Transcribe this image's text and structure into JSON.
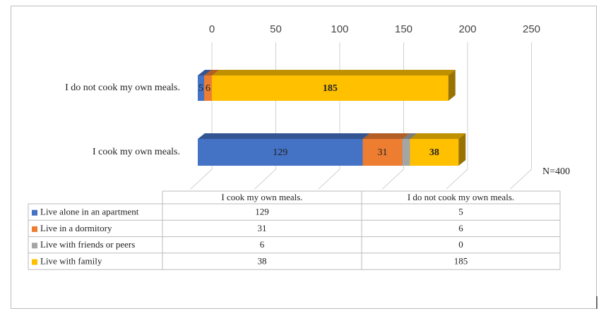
{
  "chart_data": {
    "type": "bar3d_stacked_horizontal",
    "categories": [
      "I  cook my own meals.",
      "I do not cook my own meals."
    ],
    "series": [
      {
        "name": "Live alone in an apartment",
        "color": "#4472c4",
        "values": [
          129,
          5
        ],
        "data_labels": true
      },
      {
        "name": "Live in a dormitory",
        "color": "#ed7d31",
        "values": [
          31,
          6
        ],
        "data_labels": true
      },
      {
        "name": "Live with friends or peers",
        "color": "#a5a5a5",
        "values": [
          6,
          0
        ],
        "data_labels": false
      },
      {
        "name": "Live with family",
        "color": "#ffc000",
        "values": [
          38,
          185
        ],
        "data_labels": true
      }
    ],
    "xlim": [
      0,
      250
    ],
    "xticks": [
      0,
      50,
      100,
      150,
      200,
      250
    ],
    "grid": true,
    "annotation": "N=400"
  }
}
